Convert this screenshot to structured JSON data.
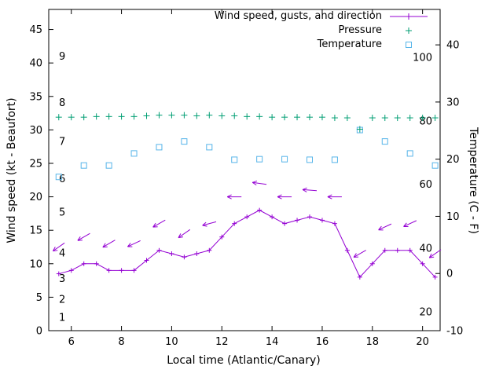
{
  "chart_data": {
    "type": "line",
    "title": "",
    "xlabel": "Local time (Atlantic/Canary)",
    "ylabel": "Wind speed (kt - Beaufort)",
    "y2label": "Temperature (C - F)",
    "x_range": [
      5.1,
      20.7
    ],
    "y_range_left": [
      0,
      48
    ],
    "y_range_right": [
      -10,
      46.2
    ],
    "x_ticks": [
      6,
      8,
      10,
      12,
      14,
      16,
      18,
      20
    ],
    "y_ticks_left": [
      0,
      5,
      10,
      15,
      20,
      25,
      30,
      35,
      40,
      45
    ],
    "y_ticks_right": [
      -10,
      0,
      10,
      20,
      30,
      40
    ],
    "grid": false,
    "legend_position": "top-right-inside",
    "axis_color": "#000000",
    "text_color": "#000000",
    "beaufort_labels": [
      {
        "label": "1",
        "kt": 2.0
      },
      {
        "label": "2",
        "kt": 4.7
      },
      {
        "label": "3",
        "kt": 7.8
      },
      {
        "label": "4",
        "kt": 11.6
      },
      {
        "label": "5",
        "kt": 17.7
      },
      {
        "label": "6",
        "kt": 22.7
      },
      {
        "label": "7",
        "kt": 28.3
      },
      {
        "label": "8",
        "kt": 34.1
      },
      {
        "label": "9",
        "kt": 41.0
      }
    ],
    "fahrenheit_labels": [
      {
        "label": "20",
        "c": -6.7
      },
      {
        "label": "40",
        "c": 4.4
      },
      {
        "label": "60",
        "c": 15.6
      },
      {
        "label": "80",
        "c": 26.7
      },
      {
        "label": "100",
        "c": 37.8
      }
    ],
    "series": [
      {
        "name": "Wind speed, gusts, and direction",
        "type": "linespoints",
        "marker": "plus",
        "axis": "left",
        "color": "#9400d3",
        "x": [
          5.5,
          6,
          6.5,
          7,
          7.5,
          8,
          8.5,
          9,
          9.5,
          10,
          10.5,
          11,
          11.5,
          12,
          12.5,
          13,
          13.5,
          14,
          14.5,
          15,
          15.5,
          16,
          16.5,
          17,
          17.5,
          18,
          18.5,
          19,
          19.5,
          20,
          20.5
        ],
        "values": [
          8.5,
          9,
          10,
          10,
          9,
          9,
          9,
          10.5,
          12,
          11.5,
          11,
          11.5,
          12,
          14,
          16,
          17,
          18,
          17,
          16,
          16.5,
          17,
          16.5,
          16,
          12,
          8,
          10,
          12,
          12,
          12,
          10,
          8
        ]
      },
      {
        "name": "Pressure",
        "type": "points",
        "marker": "plus",
        "axis": "left",
        "color": "#009e73",
        "x": [
          5.5,
          6,
          6.5,
          7,
          7.5,
          8,
          8.5,
          9,
          9.5,
          10,
          10.5,
          11,
          11.5,
          12,
          12.5,
          13,
          13.5,
          14,
          14.5,
          15,
          15.5,
          16,
          16.5,
          17,
          17.5,
          18,
          18.5,
          19,
          19.5,
          20,
          20.5
        ],
        "values": [
          31.9,
          31.9,
          31.9,
          32,
          32,
          32,
          32,
          32.1,
          32.2,
          32.2,
          32.2,
          32.1,
          32.2,
          32.1,
          32.1,
          32,
          32,
          31.9,
          31.9,
          31.9,
          31.9,
          31.9,
          31.8,
          31.8,
          30.1,
          31.8,
          31.8,
          31.8,
          31.8,
          31.8,
          31.8
        ]
      },
      {
        "name": "Temperature",
        "type": "points",
        "marker": "square",
        "axis": "right",
        "color": "#56b4e9",
        "x": [
          5.5,
          6.5,
          7.5,
          8.5,
          9.5,
          10.5,
          11.5,
          12.5,
          13.5,
          14.5,
          15.5,
          16.5,
          17.5,
          18.5,
          19.5,
          20.5
        ],
        "values": [
          16.9,
          18.9,
          18.9,
          21.0,
          22.1,
          23.1,
          22.1,
          19.9,
          20.0,
          20.0,
          19.9,
          19.9,
          25.1,
          23.1,
          21.0,
          18.9
        ]
      }
    ],
    "gusts": {
      "color": "#9400d3",
      "points": [
        {
          "x": 5.5,
          "kt": 12.5,
          "dir_deg": 215
        },
        {
          "x": 6.5,
          "kt": 14.0,
          "dir_deg": 210
        },
        {
          "x": 7.5,
          "kt": 13.0,
          "dir_deg": 210
        },
        {
          "x": 8.5,
          "kt": 13.0,
          "dir_deg": 205
        },
        {
          "x": 9.5,
          "kt": 16.0,
          "dir_deg": 210
        },
        {
          "x": 10.5,
          "kt": 14.5,
          "dir_deg": 215
        },
        {
          "x": 11.5,
          "kt": 16.0,
          "dir_deg": 195
        },
        {
          "x": 12.5,
          "kt": 20.0,
          "dir_deg": 180
        },
        {
          "x": 13.5,
          "kt": 22.0,
          "dir_deg": 172
        },
        {
          "x": 14.5,
          "kt": 20.0,
          "dir_deg": 180
        },
        {
          "x": 15.5,
          "kt": 21.0,
          "dir_deg": 176
        },
        {
          "x": 16.5,
          "kt": 20.0,
          "dir_deg": 180
        },
        {
          "x": 17.5,
          "kt": 11.5,
          "dir_deg": 210
        },
        {
          "x": 18.5,
          "kt": 15.5,
          "dir_deg": 205
        },
        {
          "x": 19.5,
          "kt": 16.0,
          "dir_deg": 205
        },
        {
          "x": 20.5,
          "kt": 11.5,
          "dir_deg": 215
        }
      ]
    }
  }
}
